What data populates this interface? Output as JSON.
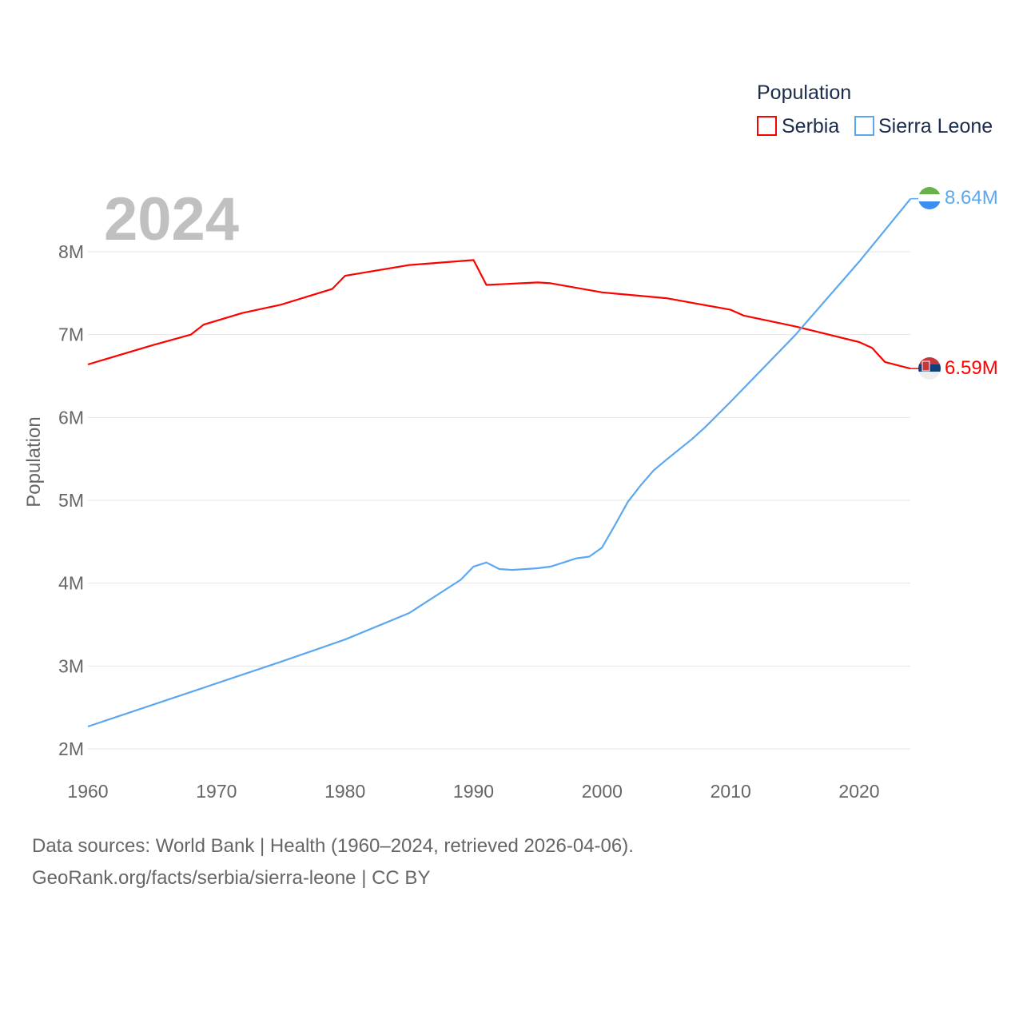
{
  "chart_data": {
    "type": "line",
    "year_label": "2024",
    "ylabel": "Population",
    "legend_title": "Population",
    "legend_position": "top-right",
    "xlim": [
      1960,
      2024
    ],
    "ylim": [
      2000000,
      8000000
    ],
    "x_ticks": [
      "1960",
      "1970",
      "1980",
      "1990",
      "2000",
      "2010",
      "2020"
    ],
    "y_ticks": [
      {
        "v": 2,
        "label": "2M"
      },
      {
        "v": 3,
        "label": "3M"
      },
      {
        "v": 4,
        "label": "4M"
      },
      {
        "v": 5,
        "label": "5M"
      },
      {
        "v": 6,
        "label": "6M"
      },
      {
        "v": 7,
        "label": "7M"
      },
      {
        "v": 8,
        "label": "8M"
      }
    ],
    "y_unit": "millions",
    "grid": true,
    "series": [
      {
        "name": "Serbia",
        "color": "#ff0000",
        "end_label": "6.59M",
        "flag": "serbia-flag",
        "x": [
          1960,
          1965,
          1968,
          1969,
          1972,
          1975,
          1979,
          1980,
          1985,
          1990,
          1991,
          1995,
          1996,
          2000,
          2005,
          2010,
          2011,
          2015,
          2020,
          2021,
          2022,
          2024
        ],
        "y": [
          6.64,
          6.87,
          7.0,
          7.12,
          7.26,
          7.36,
          7.55,
          7.71,
          7.84,
          7.9,
          7.6,
          7.63,
          7.62,
          7.51,
          7.44,
          7.3,
          7.23,
          7.1,
          6.91,
          6.84,
          6.67,
          6.59
        ]
      },
      {
        "name": "Sierra Leone",
        "color": "#5ba8f0",
        "end_label": "8.64M",
        "flag": "sierra-leone-flag",
        "x": [
          1960,
          1965,
          1970,
          1975,
          1980,
          1985,
          1986,
          1989,
          1990,
          1991,
          1992,
          1993,
          1995,
          1996,
          1997,
          1998,
          1999,
          2000,
          2001,
          2002,
          2003,
          2004,
          2005,
          2007,
          2008,
          2010,
          2015,
          2020,
          2024
        ],
        "y": [
          2.27,
          2.53,
          2.79,
          3.05,
          3.32,
          3.64,
          3.74,
          4.04,
          4.2,
          4.25,
          4.17,
          4.16,
          4.18,
          4.2,
          4.25,
          4.3,
          4.32,
          4.43,
          4.7,
          4.98,
          5.18,
          5.36,
          5.49,
          5.74,
          5.88,
          6.19,
          6.99,
          7.88,
          8.64
        ]
      }
    ]
  },
  "footer": {
    "line1": "Data sources: World Bank | Health (1960–2024, retrieved 2026-04-06).",
    "line2": "GeoRank.org/facts/serbia/sierra-leone | CC BY"
  }
}
